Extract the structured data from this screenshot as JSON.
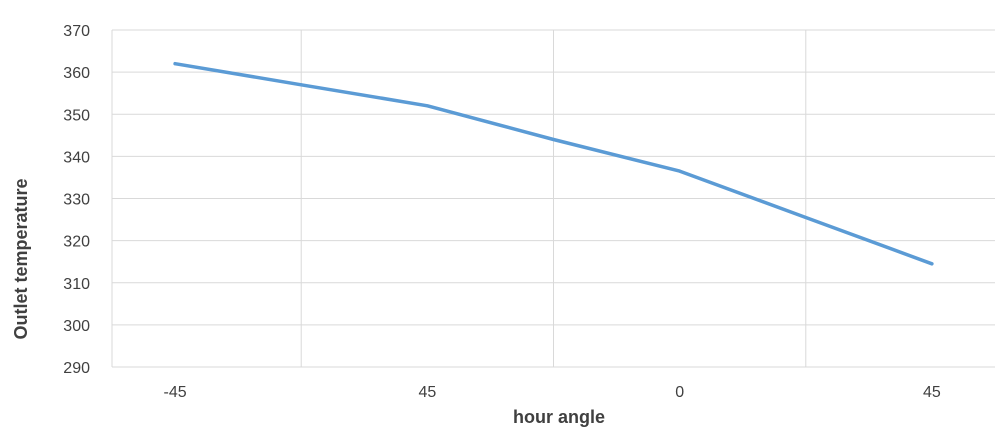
{
  "chart_data": {
    "type": "line",
    "title": "",
    "xlabel": "hour angle",
    "ylabel": "Outlet temperature",
    "categories": [
      "-45",
      "",
      "45",
      "",
      "0",
      "",
      "45"
    ],
    "x_tick_labels": [
      "-45",
      "45",
      "0",
      "45"
    ],
    "series": [
      {
        "values": [
          362,
          357,
          352,
          344,
          336.5,
          325.5,
          314.5
        ]
      }
    ],
    "ylim": [
      290,
      370
    ],
    "yticks": [
      290,
      300,
      310,
      320,
      330,
      340,
      350,
      360,
      370
    ],
    "grid": true,
    "legend": "none",
    "colors": {
      "line": "#5b9bd5",
      "grid": "#d9d9d9",
      "text": "#404040"
    }
  }
}
